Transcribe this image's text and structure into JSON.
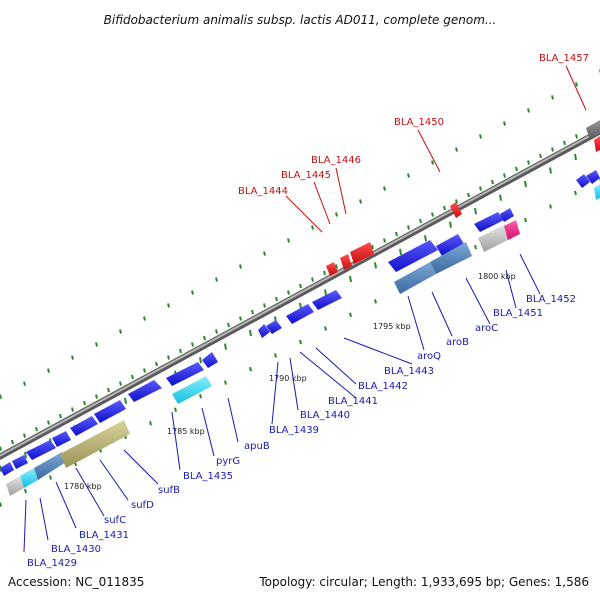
{
  "title": "Bifidobacterium animalis subsp. lactis AD011, complete genom...",
  "footer": {
    "accession": "Accession: NC_011835",
    "summary": "Topology: circular; Length: 1,933,695 bp; Genes: 1,586"
  },
  "scale_labels": [
    "1780 kbp",
    "1785 kbp",
    "1790 kbp",
    "1795 kbp",
    "1800 kbp"
  ],
  "colors": {
    "backbone": "#8a8a8a",
    "forward_gene": "#1414e0",
    "reverse_gene": "#e01414",
    "operon_steelblue": "#4a7fb5",
    "operon_khaki": "#b5b070",
    "cyan_gene": "#19d6f0",
    "grey_gene": "#b4b4b4",
    "pink_gene": "#e01478",
    "tick_green": "#2a8a2a",
    "label_blue": "#1a1ab0",
    "label_red": "#c01010"
  },
  "labels": {
    "red": [
      "BLA_1444",
      "BLA_1445",
      "BLA_1446",
      "BLA_1450",
      "BLA_1457"
    ],
    "blue": [
      "BLA_1429",
      "BLA_1430",
      "BLA_1431",
      "sufC",
      "sufD",
      "sufB",
      "BLA_1435",
      "pyrG",
      "apuB",
      "BLA_1439",
      "BLA_1440",
      "BLA_1441",
      "BLA_1442",
      "BLA_1443",
      "aroQ",
      "aroB",
      "aroC",
      "BLA_1451",
      "BLA_1452"
    ]
  }
}
